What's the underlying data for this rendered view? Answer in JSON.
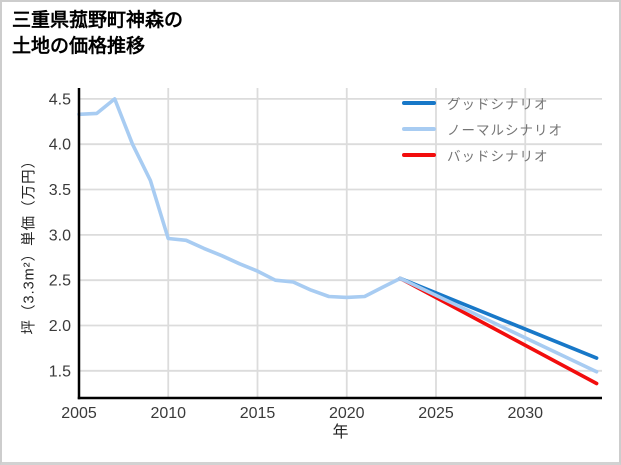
{
  "header": {
    "title_lines": [
      "三重県菰野町神森の",
      "土地の価格推移"
    ]
  },
  "chart_data": {
    "type": "line",
    "title": "三重県菰野町神森の土地の価格推移",
    "xlabel": "年",
    "ylabel": "坪（3.3m²）単価（万円）",
    "x_tick_labels": [
      "2005",
      "2010",
      "2015",
      "2020",
      "2025",
      "2030"
    ],
    "x_tick_values": [
      2005,
      2010,
      2015,
      2020,
      2025,
      2030
    ],
    "y_tick_labels": [
      "1.5",
      "2.0",
      "2.5",
      "3.0",
      "3.5",
      "4.0",
      "4.5"
    ],
    "y_tick_values": [
      1.5,
      2.0,
      2.5,
      3.0,
      3.5,
      4.0,
      4.5
    ],
    "xlim": [
      2005,
      2034.3
    ],
    "ylim": [
      1.2,
      4.62
    ],
    "grid": true,
    "legend_position": "top-right",
    "series": [
      {
        "key": "history",
        "label": "",
        "show_in_legend": false,
        "color": "#a8ccf2",
        "x": [
          2005,
          2006,
          2007,
          2008,
          2009,
          2010,
          2011,
          2012,
          2013,
          2014,
          2015,
          2016,
          2017,
          2018,
          2019,
          2020,
          2021,
          2022,
          2023
        ],
        "y": [
          4.33,
          4.34,
          4.5,
          4.0,
          3.6,
          2.96,
          2.94,
          2.85,
          2.77,
          2.68,
          2.6,
          2.5,
          2.48,
          2.39,
          2.32,
          2.31,
          2.32,
          2.42,
          2.52
        ]
      },
      {
        "key": "bad",
        "label": "バッドシナリオ",
        "show_in_legend": true,
        "color": "#f20d0d",
        "x": [
          2023,
          2034
        ],
        "y": [
          2.52,
          1.36
        ]
      },
      {
        "key": "good",
        "label": "グッドシナリオ",
        "show_in_legend": true,
        "color": "#1878c8",
        "x": [
          2023,
          2034
        ],
        "y": [
          2.52,
          1.64
        ]
      },
      {
        "key": "normal",
        "label": "ノーマルシナリオ",
        "show_in_legend": true,
        "color": "#a8ccf2",
        "x": [
          2023,
          2034
        ],
        "y": [
          2.52,
          1.49
        ]
      }
    ],
    "legend": [
      {
        "label": "グッドシナリオ",
        "color": "#1878c8"
      },
      {
        "label": "ノーマルシナリオ",
        "color": "#a8ccf2"
      },
      {
        "label": "バッドシナリオ",
        "color": "#f20d0d"
      }
    ],
    "colors": {
      "grid": "#dcdcdc",
      "axis": "#000000",
      "tick_text": "#3a3a3a",
      "legend_text": "#757575",
      "background": "#ffffff",
      "border": "#cdcdcd"
    }
  }
}
